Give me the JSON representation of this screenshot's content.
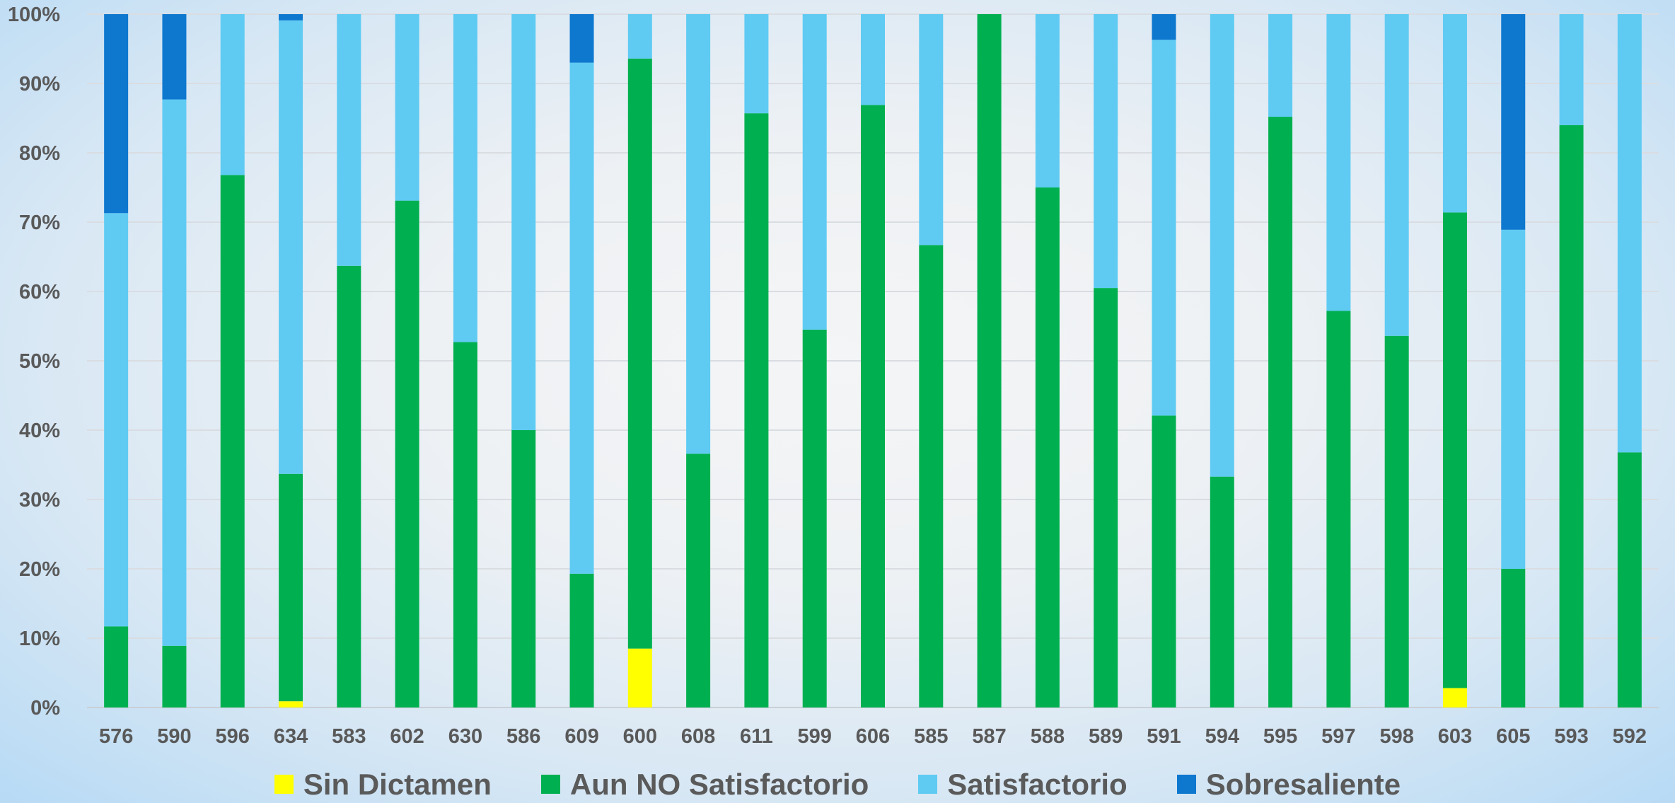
{
  "chart_data": {
    "type": "bar",
    "stacked": true,
    "normalized": true,
    "categories": [
      "576",
      "590",
      "596",
      "634",
      "583",
      "602",
      "630",
      "586",
      "609",
      "600",
      "608",
      "611",
      "599",
      "606",
      "585",
      "587",
      "588",
      "589",
      "591",
      "594",
      "595",
      "597",
      "598",
      "603",
      "605",
      "593",
      "592"
    ],
    "series": [
      {
        "name": "Sin Dictamen",
        "color": "#ffff00",
        "values": [
          0,
          0,
          0,
          0.9,
          0,
          0,
          0,
          0,
          0,
          8.5,
          0,
          0,
          0,
          0,
          0,
          0,
          0,
          0,
          0,
          0,
          0,
          0,
          0,
          2.8,
          0,
          0,
          0
        ]
      },
      {
        "name": "Aun NO Satisfactorio",
        "color": "#00b050",
        "values": [
          11.7,
          8.9,
          76.8,
          32.8,
          63.7,
          73.1,
          52.7,
          40.0,
          19.3,
          85.1,
          36.6,
          85.7,
          54.5,
          86.9,
          66.7,
          100.0,
          75.0,
          60.5,
          42.1,
          33.3,
          85.2,
          57.2,
          53.6,
          68.6,
          20.0,
          84.0,
          36.8
        ]
      },
      {
        "name": "Satisfactorio",
        "color": "#5fcbf3",
        "values": [
          59.6,
          78.8,
          23.2,
          65.4,
          36.3,
          26.9,
          47.3,
          60.0,
          73.7,
          6.4,
          63.4,
          14.3,
          45.5,
          13.1,
          33.3,
          0,
          25.0,
          39.5,
          54.2,
          66.7,
          14.8,
          42.8,
          46.4,
          28.6,
          48.9,
          16.0,
          63.2
        ]
      },
      {
        "name": "Sobresaliente",
        "color": "#0e78cf",
        "values": [
          28.7,
          12.3,
          0,
          0.9,
          0,
          0,
          0,
          0,
          7.0,
          0,
          0,
          0,
          0,
          0,
          0,
          0,
          0,
          0,
          3.7,
          0,
          0,
          0,
          0,
          0,
          31.1,
          0,
          0
        ]
      }
    ],
    "yticks": [
      "0%",
      "10%",
      "20%",
      "30%",
      "40%",
      "50%",
      "60%",
      "70%",
      "80%",
      "90%",
      "100%"
    ],
    "ylim": [
      0,
      100
    ],
    "grid": true,
    "legend_position": "bottom",
    "title": "",
    "xlabel": "",
    "ylabel": ""
  }
}
